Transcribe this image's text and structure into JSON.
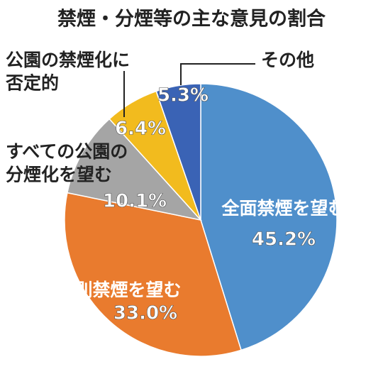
{
  "chart_data": {
    "type": "pie",
    "title": "禁煙・分煙等の主な意見の割合",
    "categories": [
      "全面禁煙を望む",
      "原則禁煙を望む",
      "すべての公園の\n分煙化を望む",
      "公園の禁煙化に\n否定的",
      "その他"
    ],
    "values": [
      45.2,
      33.0,
      10.1,
      6.4,
      5.3
    ],
    "value_labels": [
      "45.2%",
      "33.0%",
      "10.1%",
      "6.4%",
      "5.3%"
    ],
    "colors": [
      "#4f8fcb",
      "#e97b2e",
      "#a5a5a5",
      "#f2bb1e",
      "#3a63b5"
    ]
  }
}
